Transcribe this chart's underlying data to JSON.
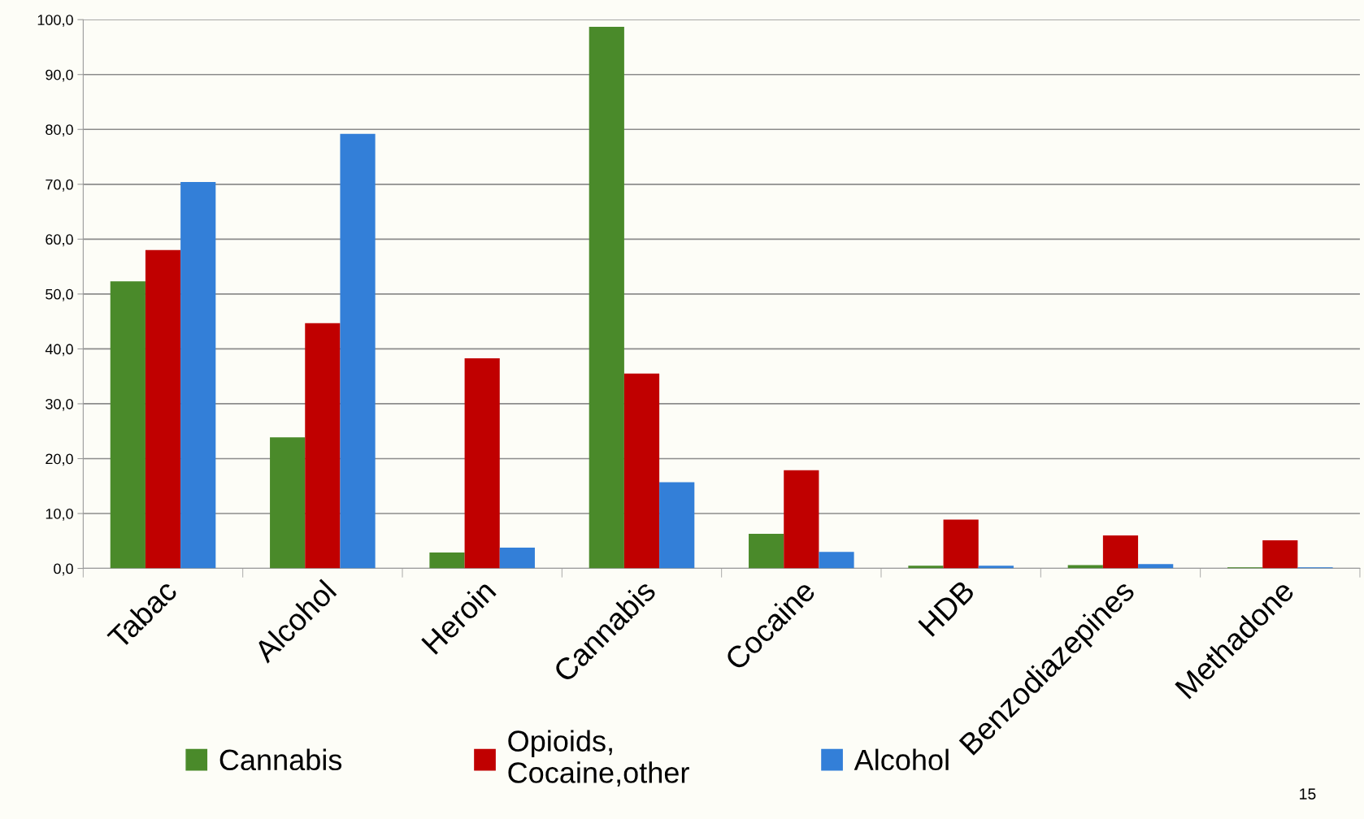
{
  "chart_data": {
    "type": "bar",
    "categories": [
      "Tabac",
      "Alcohol",
      "Heroin",
      "Cannabis",
      "Cocaine",
      "HDB",
      "Benzodiazepines",
      "Methadone"
    ],
    "series": [
      {
        "name": "Cannabis",
        "color": "#4a8a2a",
        "values": [
          52.3,
          23.9,
          2.9,
          98.7,
          6.3,
          0.5,
          0.6,
          0.2
        ]
      },
      {
        "name": "Opioids,\nCocaine,other",
        "color": "#c00000",
        "values": [
          58.0,
          44.7,
          38.3,
          35.5,
          17.9,
          8.9,
          6.0,
          5.1
        ]
      },
      {
        "name": "Alcohol",
        "color": "#337fd8",
        "values": [
          70.4,
          79.2,
          3.8,
          15.7,
          3.0,
          0.5,
          0.8,
          0.2
        ]
      }
    ],
    "ylim": [
      0,
      100
    ],
    "yticks": [
      {
        "value": 0,
        "label": "0,0"
      },
      {
        "value": 10,
        "label": "10,0"
      },
      {
        "value": 20,
        "label": "20,0"
      },
      {
        "value": 30,
        "label": "30,0"
      },
      {
        "value": 40,
        "label": "40,0"
      },
      {
        "value": 50,
        "label": "50,0"
      },
      {
        "value": 60,
        "label": "60,0"
      },
      {
        "value": 70,
        "label": "70,0"
      },
      {
        "value": 80,
        "label": "80,0"
      },
      {
        "value": 90,
        "label": "90,0"
      },
      {
        "value": 100,
        "label": "100,0"
      }
    ],
    "grid": "y",
    "legend": "bottom",
    "annotations": [
      "15"
    ]
  }
}
